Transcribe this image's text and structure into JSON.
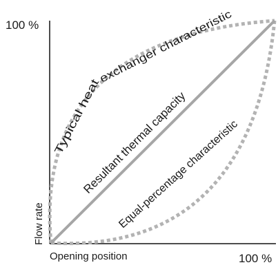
{
  "labels": {
    "y_max": "100 %",
    "x_max": "100 %",
    "x_axis": "Opening position",
    "y_axis": "Flow rate"
  },
  "curves": {
    "heat_exchanger": "Typical heat exchanger characteristic",
    "thermal_capacity": "Resultant thermal capacity",
    "equal_percentage": "Equal-percentage characteristic"
  },
  "colors": {
    "axis": "#111111",
    "curve_line": "#a6a6a6",
    "text": "#1a1a1a"
  }
}
